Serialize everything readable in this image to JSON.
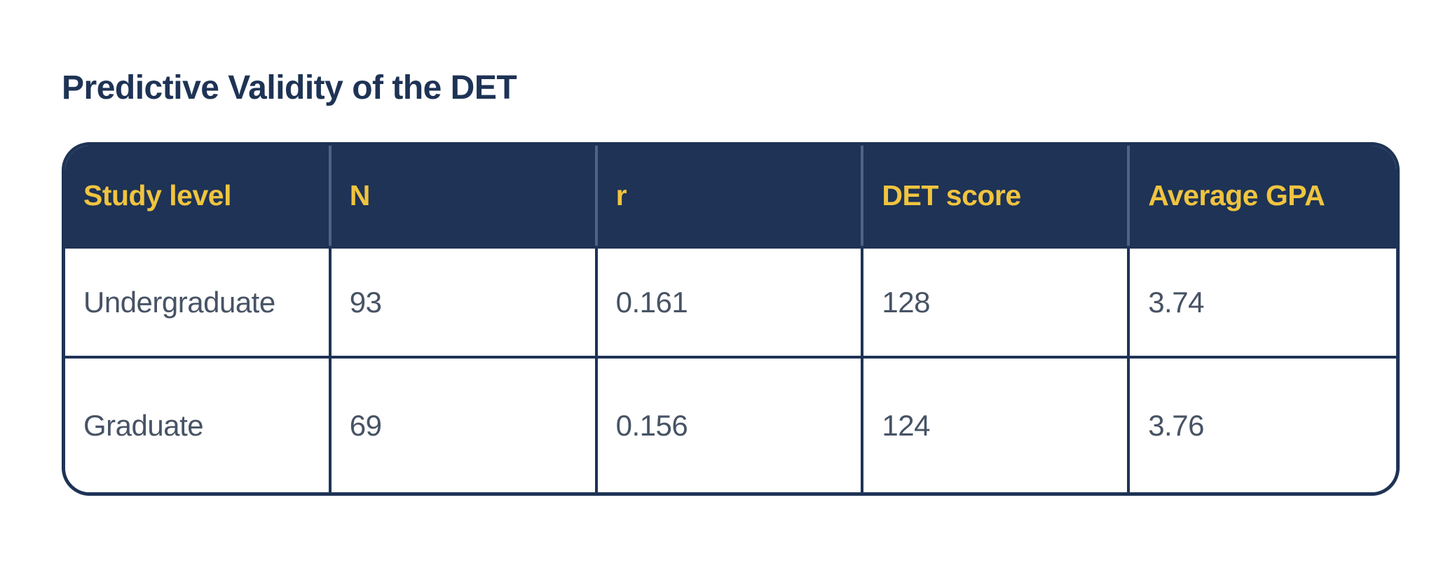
{
  "title": "Predictive Validity of the DET",
  "colors": {
    "navy": "#1e3355",
    "gold": "#f0c43f",
    "body_text": "#475365",
    "header_divider": "#4e6386",
    "background": "#ffffff"
  },
  "table": {
    "columns": [
      "Study level",
      "N",
      "r",
      "DET score",
      "Average GPA"
    ],
    "rows": [
      [
        "Undergraduate",
        "93",
        "0.161",
        "128",
        "3.74"
      ],
      [
        "Graduate",
        "69",
        "0.156",
        "124",
        "3.76"
      ]
    ]
  },
  "chart_data": {
    "type": "table",
    "title": "Predictive Validity of the DET",
    "columns": [
      "Study level",
      "N",
      "r",
      "DET score",
      "Average GPA"
    ],
    "rows": [
      {
        "study_level": "Undergraduate",
        "n": 93,
        "r": 0.161,
        "det_score": 128,
        "average_gpa": 3.74
      },
      {
        "study_level": "Graduate",
        "n": 69,
        "r": 0.156,
        "det_score": 124,
        "average_gpa": 3.76
      }
    ]
  }
}
